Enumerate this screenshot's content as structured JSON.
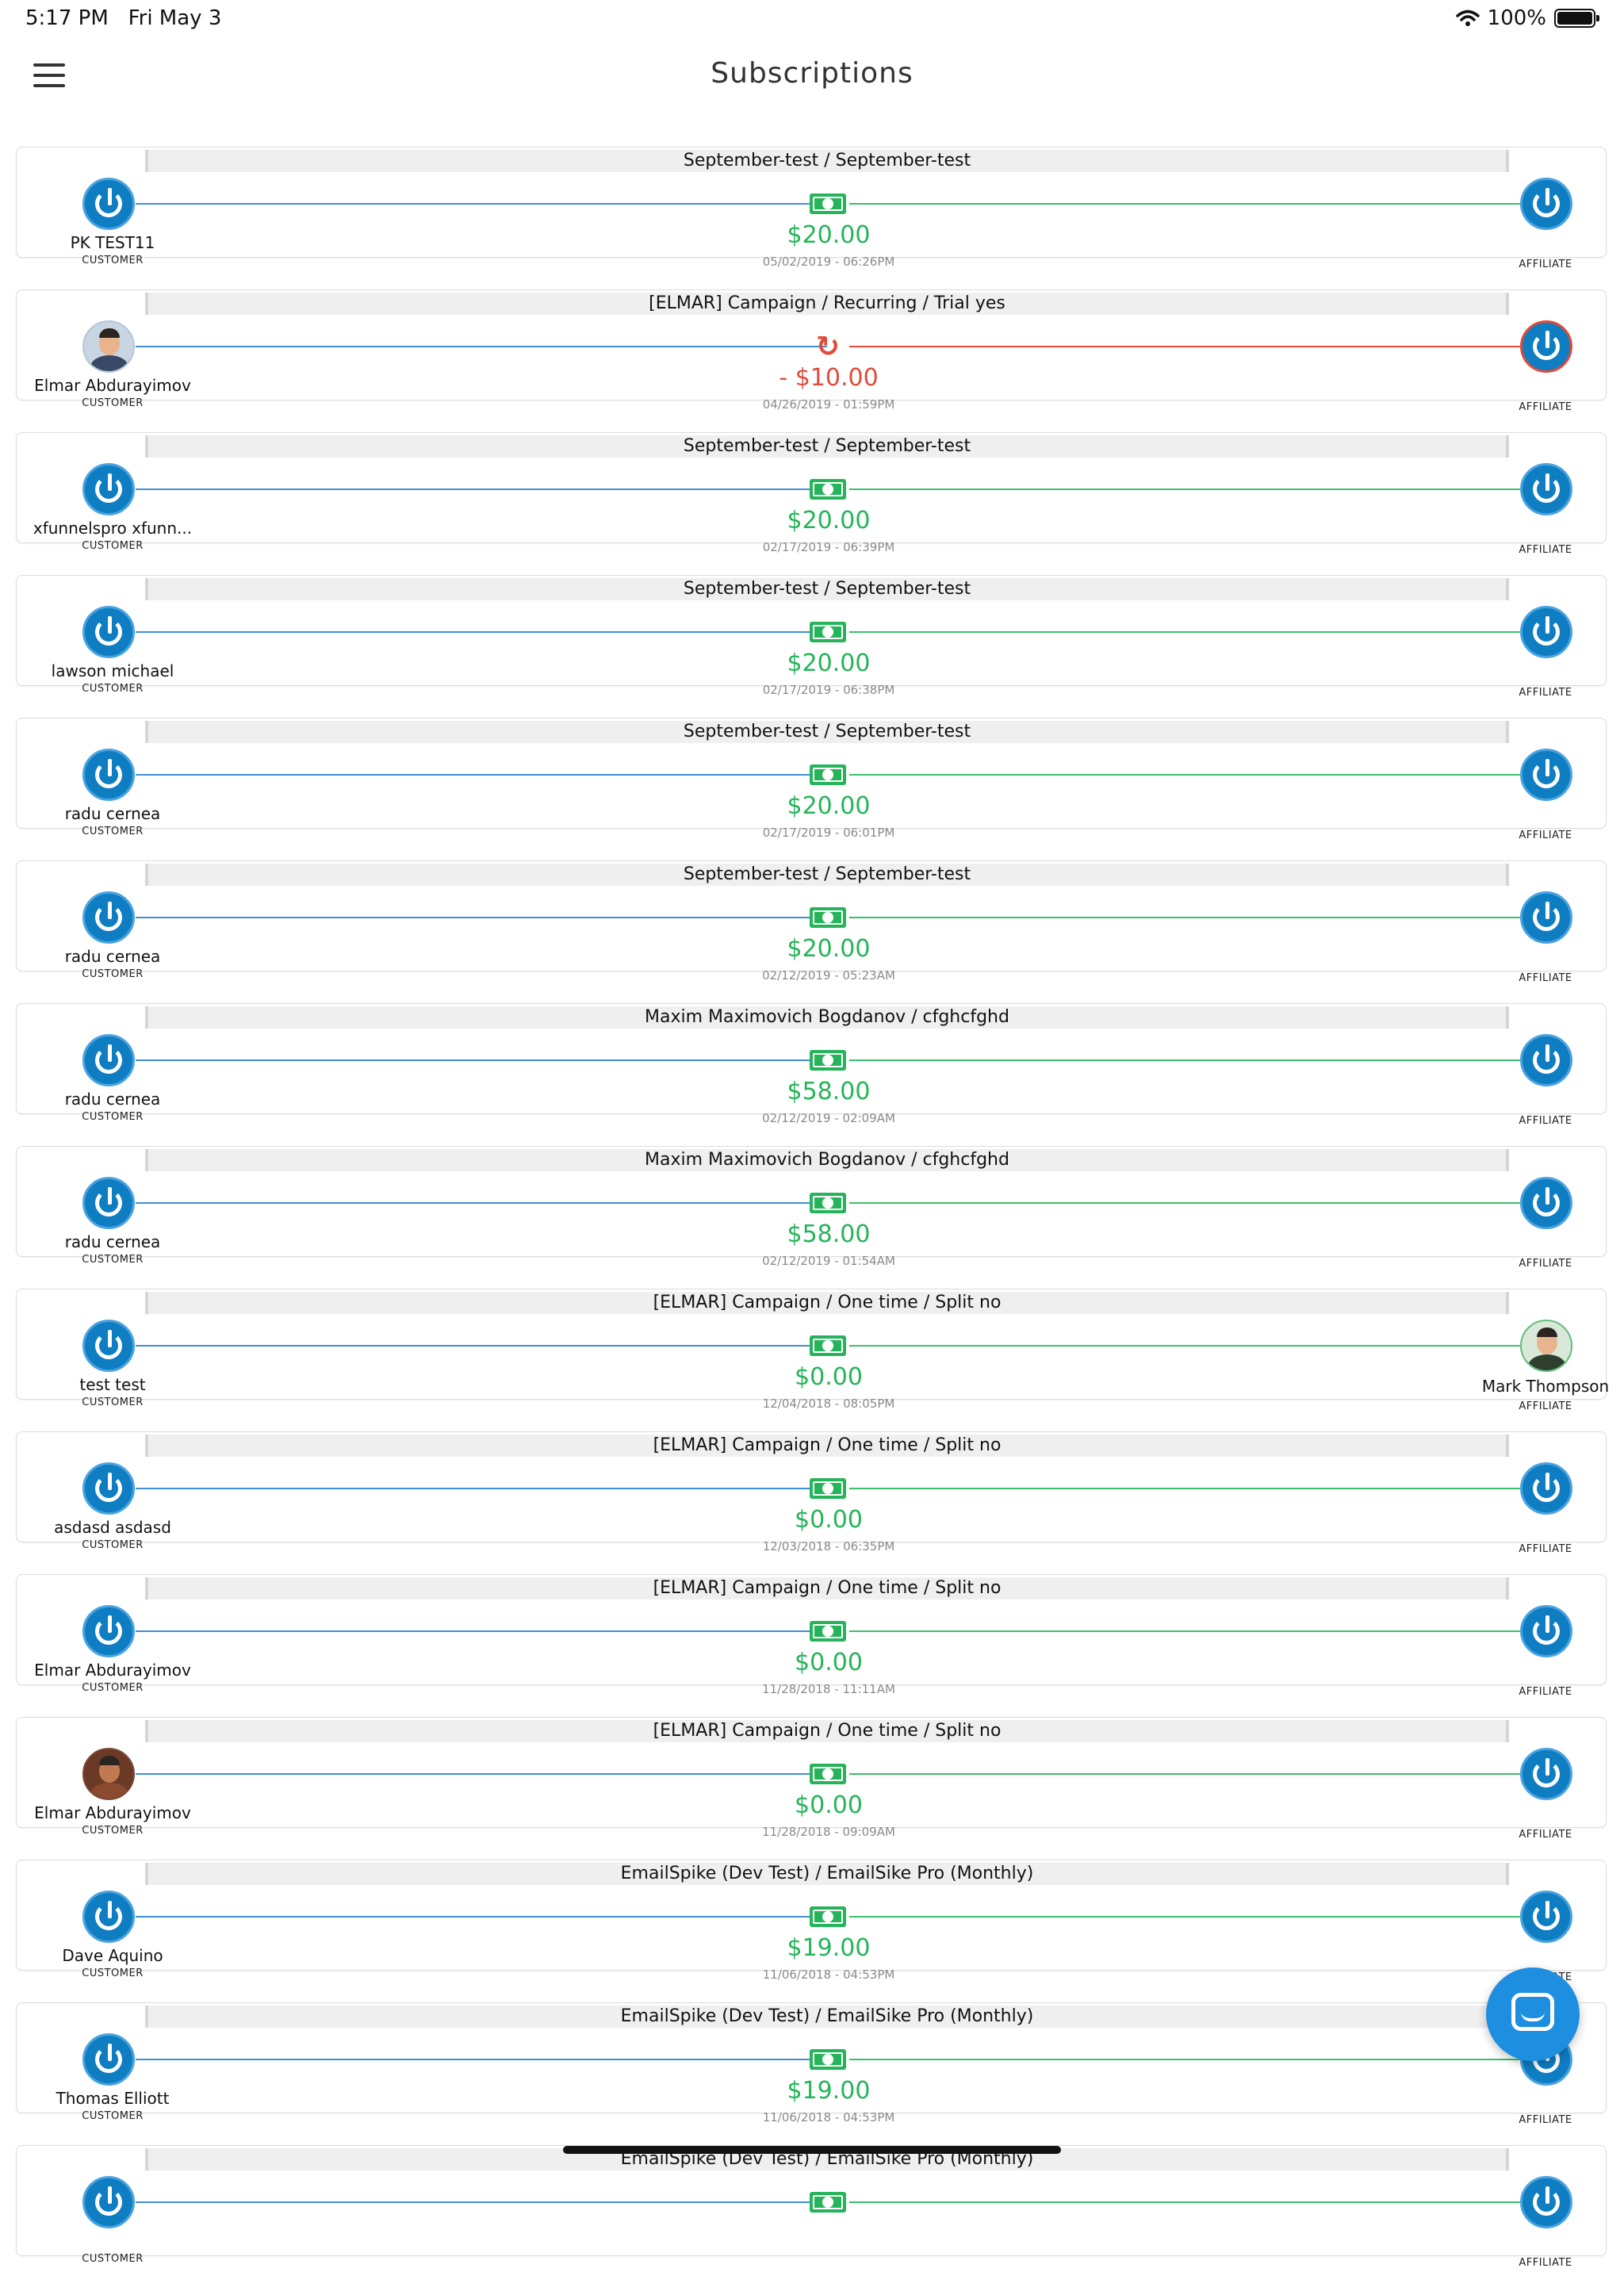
{
  "status_bar": {
    "time": "5:17 PM",
    "date": "Fri May 3",
    "battery": "100%"
  },
  "header": {
    "title": "Subscriptions"
  },
  "labels": {
    "customer": "CUSTOMER",
    "affiliate": "AFFILIATE"
  },
  "colors": {
    "positive": "#26b45a",
    "negative": "#e14b3b",
    "customer_line": "#3d8fd6",
    "primary": "#0e7dc2"
  },
  "items": [
    {
      "title": "September-test / September-test",
      "customer": "PK TEST11",
      "customer_avatar": "logo",
      "affiliate": "",
      "affiliate_avatar": "logo",
      "amount": "$20.00",
      "date": "05/02/2019 - 06:26PM",
      "status": "paid"
    },
    {
      "title": "[ELMAR] Campaign / Recurring / Trial yes",
      "customer": "Elmar Abdurayimov",
      "customer_avatar": "photo",
      "affiliate": "",
      "affiliate_avatar": "logo",
      "amount": "- $10.00",
      "date": "04/26/2019 - 01:59PM",
      "status": "refund"
    },
    {
      "title": "September-test / September-test",
      "customer": "xfunnelspro xfunn...",
      "customer_avatar": "logo",
      "affiliate": "",
      "affiliate_avatar": "logo",
      "amount": "$20.00",
      "date": "02/17/2019 - 06:39PM",
      "status": "paid"
    },
    {
      "title": "September-test / September-test",
      "customer": "lawson michael",
      "customer_avatar": "logo",
      "affiliate": "",
      "affiliate_avatar": "logo",
      "amount": "$20.00",
      "date": "02/17/2019 - 06:38PM",
      "status": "paid"
    },
    {
      "title": "September-test / September-test",
      "customer": "radu cernea",
      "customer_avatar": "logo",
      "affiliate": "",
      "affiliate_avatar": "logo",
      "amount": "$20.00",
      "date": "02/17/2019 - 06:01PM",
      "status": "paid"
    },
    {
      "title": "September-test / September-test",
      "customer": "radu cernea",
      "customer_avatar": "logo",
      "affiliate": "",
      "affiliate_avatar": "logo",
      "amount": "$20.00",
      "date": "02/12/2019 - 05:23AM",
      "status": "paid"
    },
    {
      "title": "Maxim Maximovich Bogdanov / cfghcfghd",
      "customer": "radu cernea",
      "customer_avatar": "logo",
      "affiliate": "",
      "affiliate_avatar": "logo",
      "amount": "$58.00",
      "date": "02/12/2019 - 02:09AM",
      "status": "paid"
    },
    {
      "title": "Maxim Maximovich Bogdanov / cfghcfghd",
      "customer": "radu cernea",
      "customer_avatar": "logo",
      "affiliate": "",
      "affiliate_avatar": "logo",
      "amount": "$58.00",
      "date": "02/12/2019 - 01:54AM",
      "status": "paid"
    },
    {
      "title": "[ELMAR] Campaign / One time / Split no",
      "customer": "test test",
      "customer_avatar": "logo",
      "affiliate": "Mark Thompson",
      "affiliate_avatar": "photo",
      "amount": "$0.00",
      "date": "12/04/2018 - 08:05PM",
      "status": "paid"
    },
    {
      "title": "[ELMAR] Campaign / One time / Split no",
      "customer": "asdasd asdasd",
      "customer_avatar": "logo",
      "affiliate": "",
      "affiliate_avatar": "logo",
      "amount": "$0.00",
      "date": "12/03/2018 - 06:35PM",
      "status": "paid"
    },
    {
      "title": "[ELMAR] Campaign / One time / Split no",
      "customer": "Elmar Abdurayimov",
      "customer_avatar": "logo",
      "affiliate": "",
      "affiliate_avatar": "logo",
      "amount": "$0.00",
      "date": "11/28/2018 - 11:11AM",
      "status": "paid"
    },
    {
      "title": "[ELMAR] Campaign / One time / Split no",
      "customer": "Elmar Abdurayimov",
      "customer_avatar": "photo-dark",
      "affiliate": "",
      "affiliate_avatar": "logo",
      "amount": "$0.00",
      "date": "11/28/2018 - 09:09AM",
      "status": "paid"
    },
    {
      "title": "EmailSpike (Dev Test) / EmailSike Pro (Monthly)",
      "customer": "Dave Aquino",
      "customer_avatar": "logo",
      "affiliate": "",
      "affiliate_avatar": "logo",
      "amount": "$19.00",
      "date": "11/06/2018 - 04:53PM",
      "status": "paid"
    },
    {
      "title": "EmailSpike (Dev Test) / EmailSike Pro (Monthly)",
      "customer": "Thomas Elliott",
      "customer_avatar": "logo",
      "affiliate": "",
      "affiliate_avatar": "logo",
      "amount": "$19.00",
      "date": "11/06/2018 - 04:53PM",
      "status": "paid"
    },
    {
      "title": "EmailSpike (Dev Test) / EmailSike Pro (Monthly)",
      "customer": "",
      "customer_avatar": "logo",
      "affiliate": "",
      "affiliate_avatar": "logo",
      "amount": "",
      "date": "",
      "status": "paid"
    }
  ]
}
